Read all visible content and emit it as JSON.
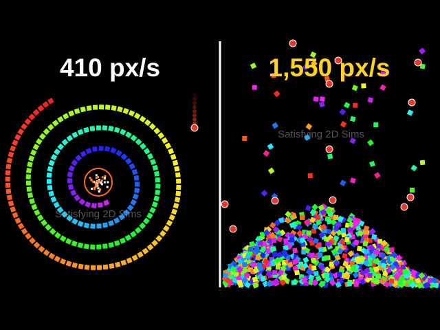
{
  "left": {
    "speed": "410 px/s"
  },
  "right": {
    "speed": "1,550 px/s"
  },
  "watermark": "Satisfying 2D Sims"
}
